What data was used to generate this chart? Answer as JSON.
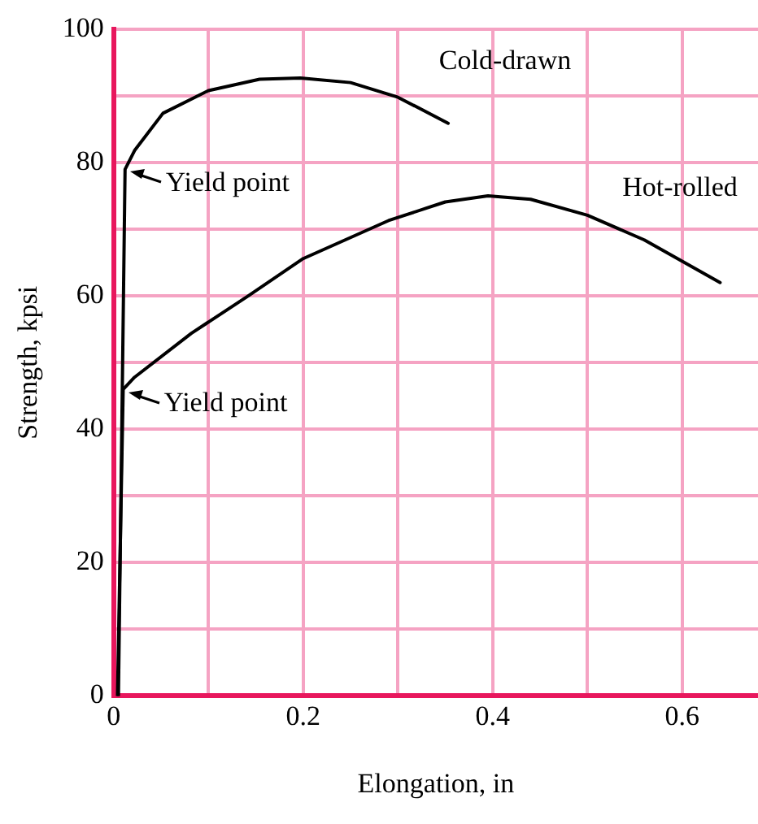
{
  "chart_data": {
    "type": "line",
    "xlabel": "Elongation, in",
    "ylabel": "Strength, kpsi",
    "xlim": [
      0,
      0.68
    ],
    "ylim": [
      0,
      100
    ],
    "xticks": [
      0,
      {
        "value": 0.1,
        "label": null
      },
      0.2,
      {
        "value": 0.3,
        "label": null
      },
      0.4,
      {
        "value": 0.5,
        "label": null
      },
      0.6
    ],
    "yticks": [
      0,
      {
        "value": 10,
        "label": null
      },
      20,
      {
        "value": 30,
        "label": null
      },
      40,
      {
        "value": 50,
        "label": null
      },
      60,
      {
        "value": 70,
        "label": null
      },
      80,
      {
        "value": 90,
        "label": null
      },
      100
    ],
    "grid": true,
    "legend": false,
    "marker": "none",
    "line_style": "solid",
    "series": [
      {
        "name": "Cold-drawn",
        "color": "#000000",
        "x": [
          0.005,
          0.012,
          0.022,
          0.052,
          0.1,
          0.154,
          0.197,
          0.25,
          0.3,
          0.353
        ],
        "values": [
          0,
          79,
          81.8,
          87.4,
          90.8,
          92.5,
          92.7,
          92,
          89.8,
          85.9
        ]
      },
      {
        "name": "Hot-rolled",
        "color": "#000000",
        "x": [
          0.004,
          0.01,
          0.022,
          0.082,
          0.142,
          0.2,
          0.29,
          0.35,
          0.395,
          0.44,
          0.5,
          0.56,
          0.64
        ],
        "values": [
          0,
          46,
          47.8,
          54.4,
          60,
          65.6,
          71.3,
          74.1,
          75,
          74.5,
          72.1,
          68.4,
          62
        ]
      }
    ],
    "annotations": [
      {
        "text": "Yield point",
        "x": 0.012,
        "y": 79
      },
      {
        "text": "Yield point",
        "x": 0.01,
        "y": 46
      }
    ]
  }
}
